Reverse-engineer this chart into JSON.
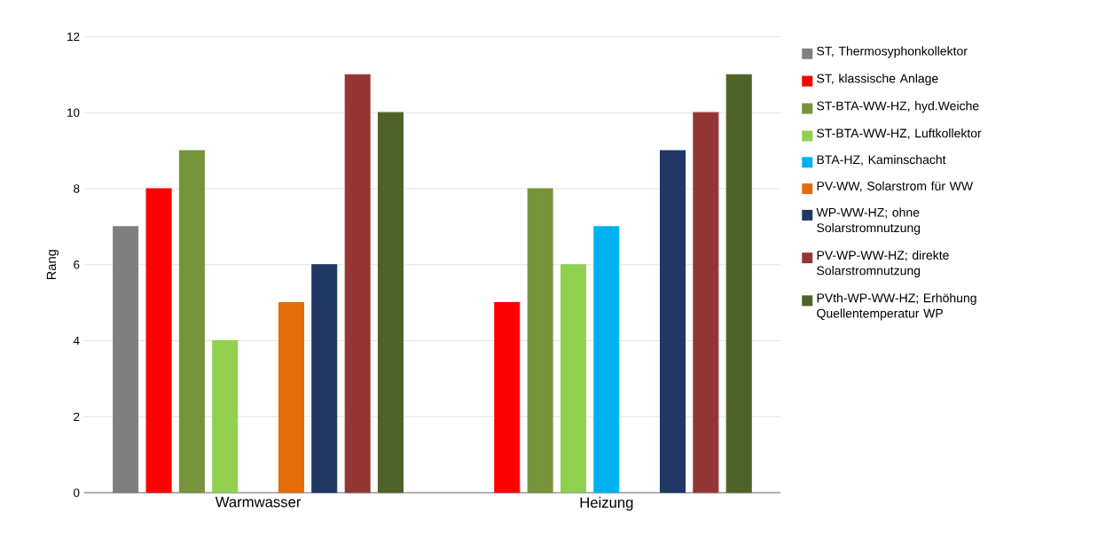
{
  "chart_data": {
    "type": "bar",
    "ylabel": "Rang",
    "categories": [
      "Warmwasser",
      "Heizung"
    ],
    "series": [
      {
        "name": "ST, Thermosyphonkollektor",
        "color": "#7f7f7f",
        "values": [
          7,
          null
        ]
      },
      {
        "name": "ST, klassische Anlage",
        "color": "#ff0000",
        "values": [
          8,
          5
        ]
      },
      {
        "name": "ST-BTA-WW-HZ, hyd.Weiche",
        "color": "#77933c",
        "values": [
          9,
          8
        ]
      },
      {
        "name": "ST-BTA-WW-HZ, Luftkollektor",
        "color": "#92d050",
        "values": [
          4,
          6
        ]
      },
      {
        "name": "BTA-HZ, Kaminschacht",
        "color": "#00b0f0",
        "values": [
          null,
          7
        ]
      },
      {
        "name": "PV-WW, Solarstrom für WW",
        "color": "#e46c0a",
        "values": [
          5,
          null
        ]
      },
      {
        "name": "WP-WW-HZ; ohne Solarstromnutzung",
        "color": "#1f3864",
        "values": [
          6,
          9
        ]
      },
      {
        "name": "PV-WP-WW-HZ; direkte Solarstromnutzung",
        "color": "#943634",
        "values": [
          11,
          10
        ]
      },
      {
        "name": "PVth-WP-WW-HZ; Erhöhung Quellentemperatur WP",
        "color": "#4f6228",
        "values": [
          10,
          11
        ]
      }
    ],
    "ylim": [
      0,
      12
    ],
    "yticks": [
      0,
      2,
      4,
      6,
      8,
      10,
      12
    ],
    "grid": "y",
    "legend": "right"
  }
}
